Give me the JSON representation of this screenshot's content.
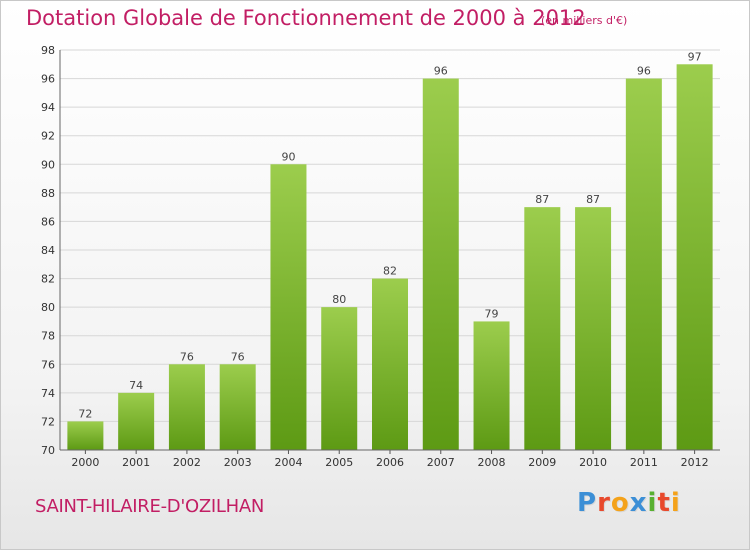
{
  "title": "Dotation Globale de Fonctionnement de 2000 à 2012",
  "unit": "(en milliers d'€)",
  "commune": "SAINT-HILAIRE-D'OZILHAN",
  "logo": {
    "letters": [
      "P",
      "r",
      "o",
      "x",
      "i",
      "t",
      "i"
    ],
    "colors": [
      "#3c8fd6",
      "#e8492c",
      "#f4a21a",
      "#3c8fd6",
      "#58b031",
      "#e8492c",
      "#f4a21a"
    ]
  },
  "colors": {
    "bar_top": "#9ccd4d",
    "bar_bottom": "#5d9a14",
    "grid": "#d7d7d7",
    "accent": "#c21e64"
  },
  "chart_data": {
    "type": "bar",
    "title": "Dotation Globale de Fonctionnement de 2000 à 2012",
    "subtitle": "(en milliers d'€)",
    "categories": [
      "2000",
      "2001",
      "2002",
      "2003",
      "2004",
      "2005",
      "2006",
      "2007",
      "2008",
      "2009",
      "2010",
      "2011",
      "2012"
    ],
    "values": [
      72,
      74,
      76,
      76,
      90,
      80,
      82,
      96,
      79,
      87,
      87,
      96,
      97
    ],
    "data_labels": [
      "72",
      "74",
      "76",
      "76",
      "90",
      "80",
      "82",
      "96",
      "79",
      "87",
      "87",
      "96",
      "97"
    ],
    "ylim": [
      70,
      98
    ],
    "yticks": [
      "70",
      "72",
      "74",
      "76",
      "78",
      "80",
      "82",
      "84",
      "86",
      "88",
      "90",
      "92",
      "94",
      "96",
      "98"
    ],
    "grid": true,
    "xlabel": "",
    "ylabel": ""
  }
}
